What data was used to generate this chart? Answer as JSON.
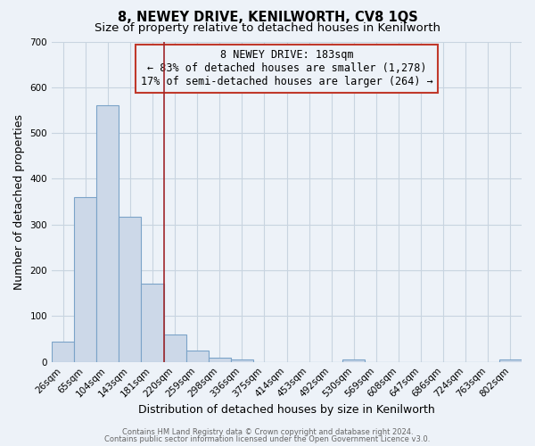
{
  "title": "8, NEWEY DRIVE, KENILWORTH, CV8 1QS",
  "subtitle": "Size of property relative to detached houses in Kenilworth",
  "xlabel": "Distribution of detached houses by size in Kenilworth",
  "ylabel": "Number of detached properties",
  "bar_labels": [
    "26sqm",
    "65sqm",
    "104sqm",
    "143sqm",
    "181sqm",
    "220sqm",
    "259sqm",
    "298sqm",
    "336sqm",
    "375sqm",
    "414sqm",
    "453sqm",
    "492sqm",
    "530sqm",
    "569sqm",
    "608sqm",
    "647sqm",
    "686sqm",
    "724sqm",
    "763sqm",
    "802sqm"
  ],
  "bar_values": [
    44,
    360,
    560,
    317,
    170,
    60,
    25,
    10,
    5,
    0,
    0,
    0,
    0,
    6,
    0,
    0,
    0,
    0,
    0,
    0,
    5
  ],
  "bar_color": "#ccd8e8",
  "bar_edge_color": "#7ba3c8",
  "marker_line_color": "#a0272a",
  "annotation_text_line1": "8 NEWEY DRIVE: 183sqm",
  "annotation_text_line2": "← 83% of detached houses are smaller (1,278)",
  "annotation_text_line3": "17% of semi-detached houses are larger (264) →",
  "annotation_box_edge": "#c0392b",
  "ylim": [
    0,
    700
  ],
  "yticks": [
    0,
    100,
    200,
    300,
    400,
    500,
    600,
    700
  ],
  "footer_line1": "Contains HM Land Registry data © Crown copyright and database right 2024.",
  "footer_line2": "Contains public sector information licensed under the Open Government Licence v3.0.",
  "bg_color": "#edf2f8",
  "grid_color": "#c8d4e0",
  "title_fontsize": 10.5,
  "subtitle_fontsize": 9.5,
  "xlabel_fontsize": 9,
  "ylabel_fontsize": 9,
  "tick_fontsize": 7.5,
  "annotation_fontsize": 8.5,
  "footer_fontsize": 6.0
}
